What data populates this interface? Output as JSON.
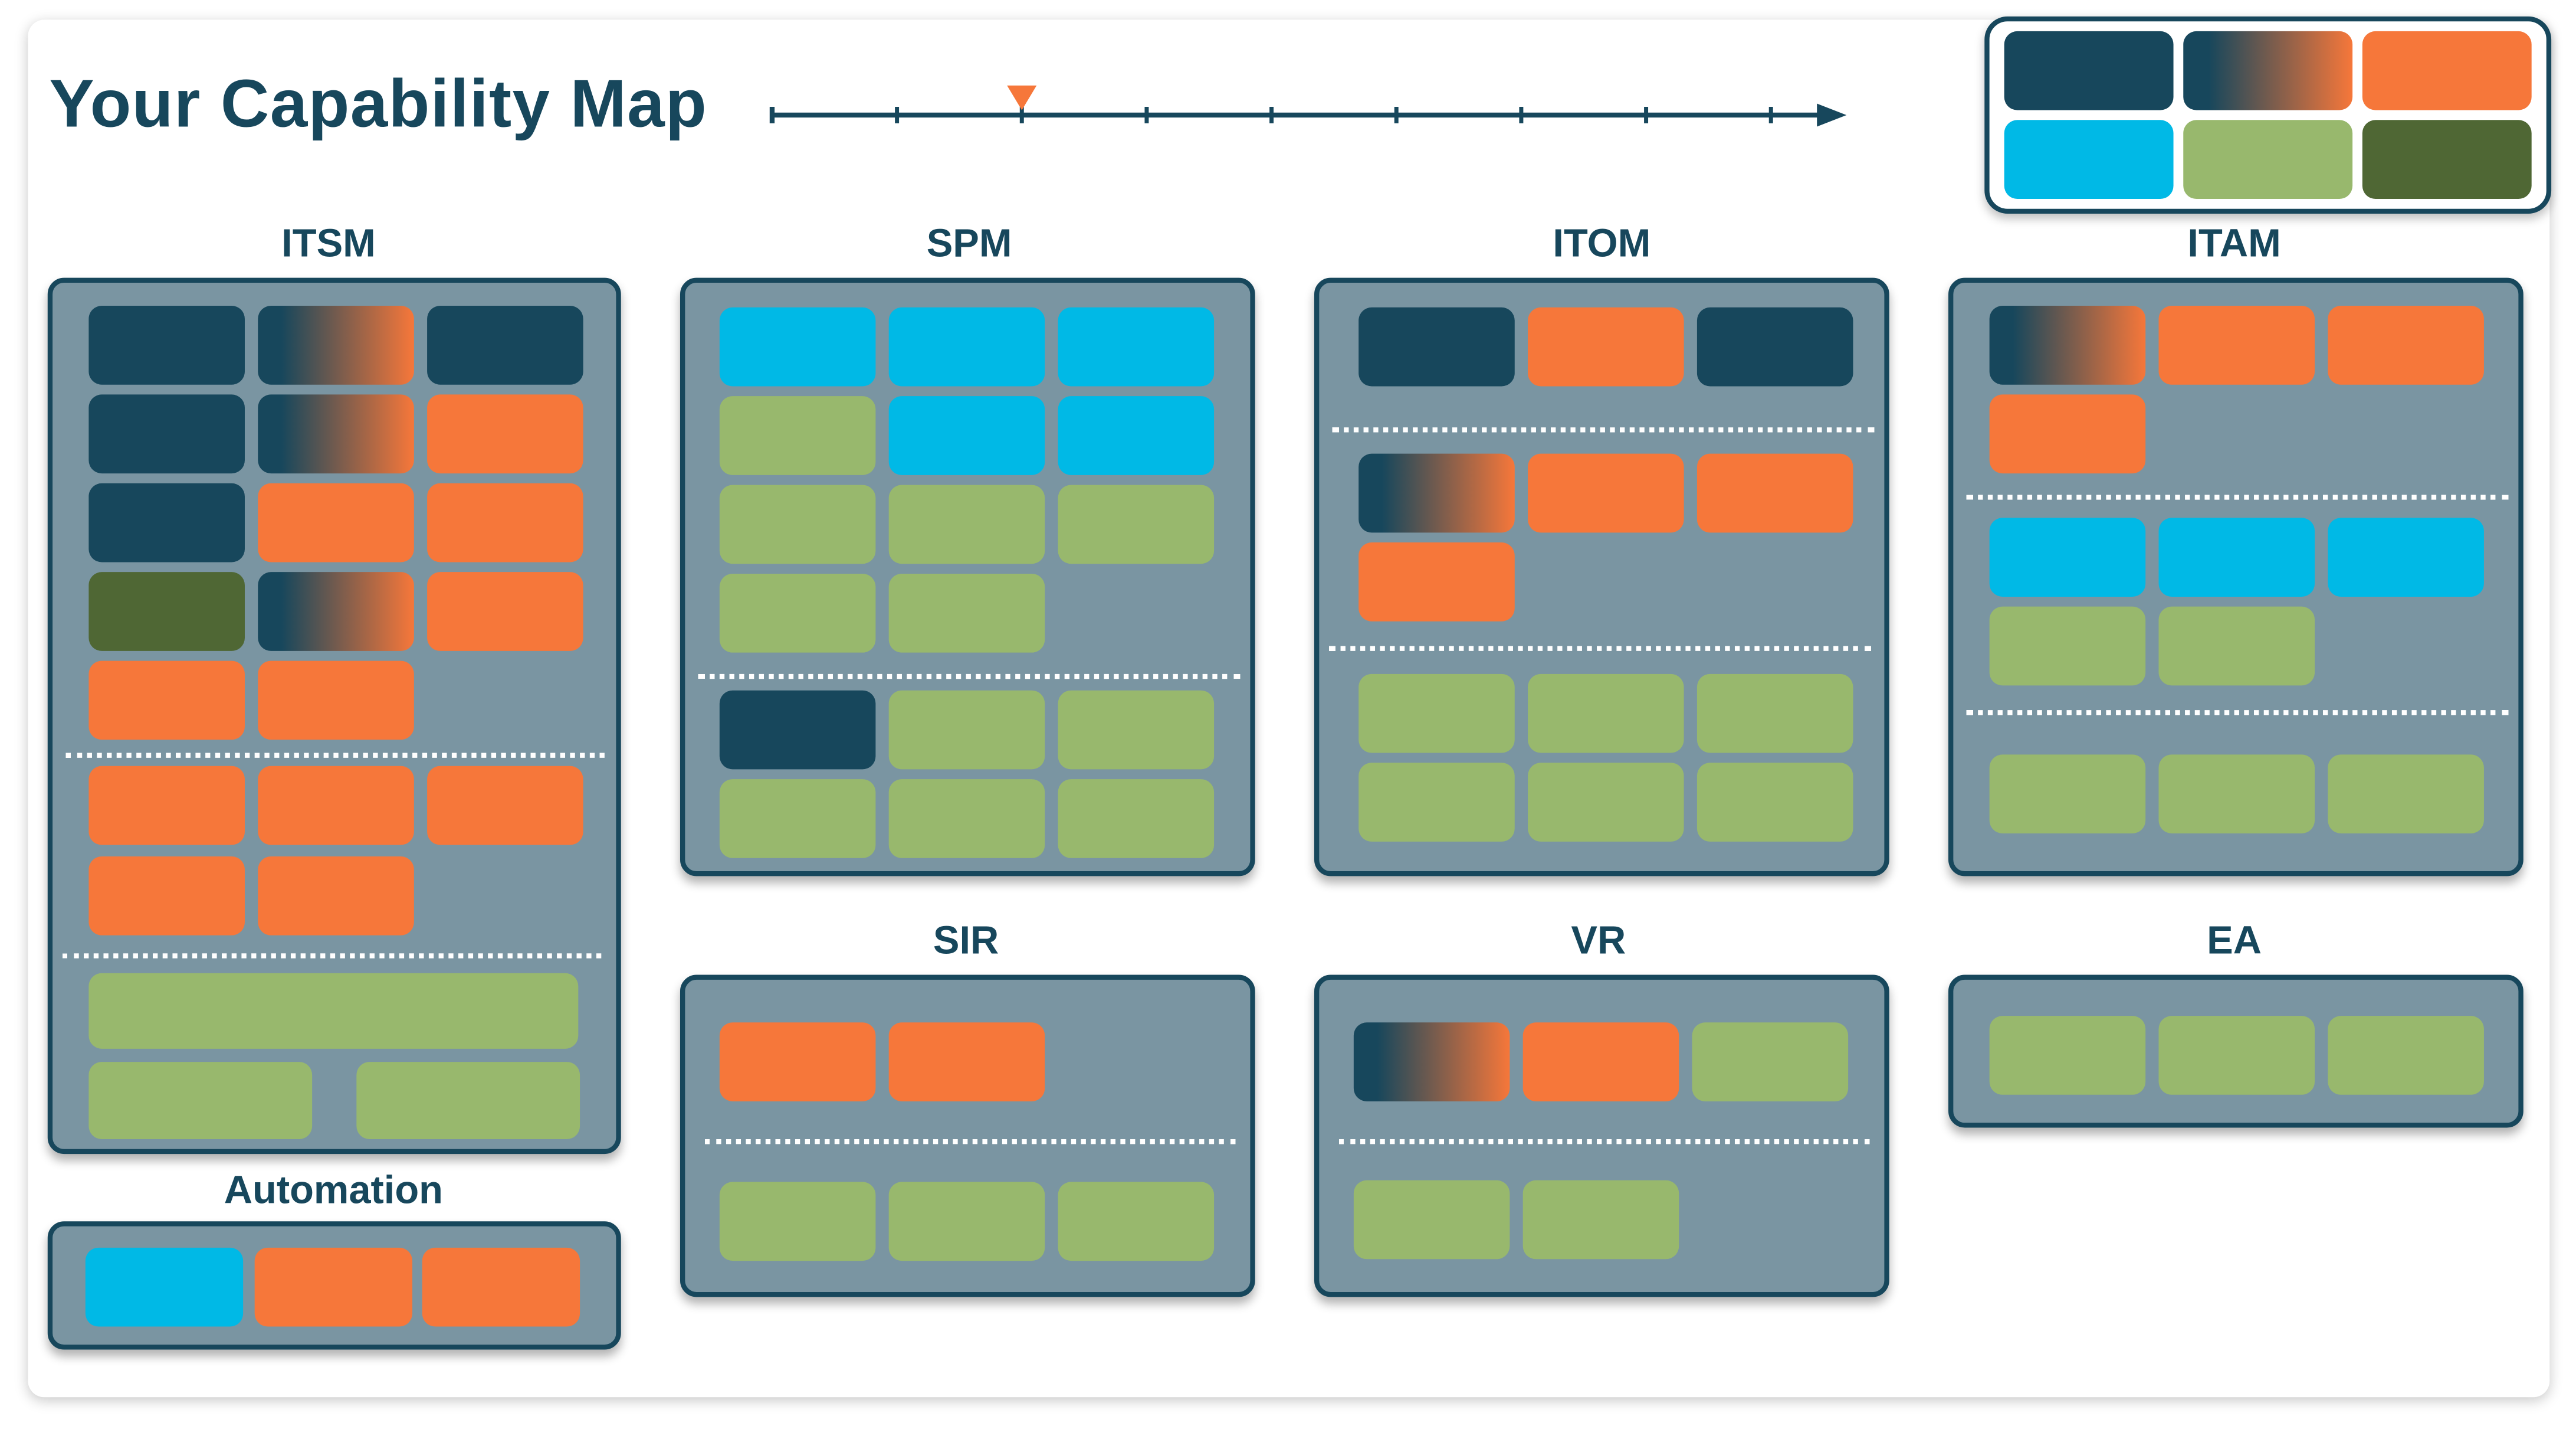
{
  "page": {
    "title": "Your Capability Map"
  },
  "colors": {
    "navy": "#17475c",
    "orange": "#f6773a",
    "blue": "#00b9e6",
    "light_green": "#98b86d",
    "dark_green": "#4f6734",
    "panel": "#7a95a2"
  },
  "timeline": {
    "tick_count": 9,
    "marker_tick": 2,
    "marker_color": "#f6773a"
  },
  "legend": {
    "swatches": [
      "navy",
      "navy-to-orange gradient",
      "orange",
      "blue",
      "light_green",
      "dark_green"
    ]
  },
  "sections": {
    "itsm": {
      "title": "ITSM"
    },
    "spm": {
      "title": "SPM"
    },
    "itom": {
      "title": "ITOM"
    },
    "itam": {
      "title": "ITAM"
    },
    "sir": {
      "title": "SIR"
    },
    "vr": {
      "title": "VR"
    },
    "ea": {
      "title": "EA"
    },
    "automation": {
      "title": "Automation"
    }
  }
}
